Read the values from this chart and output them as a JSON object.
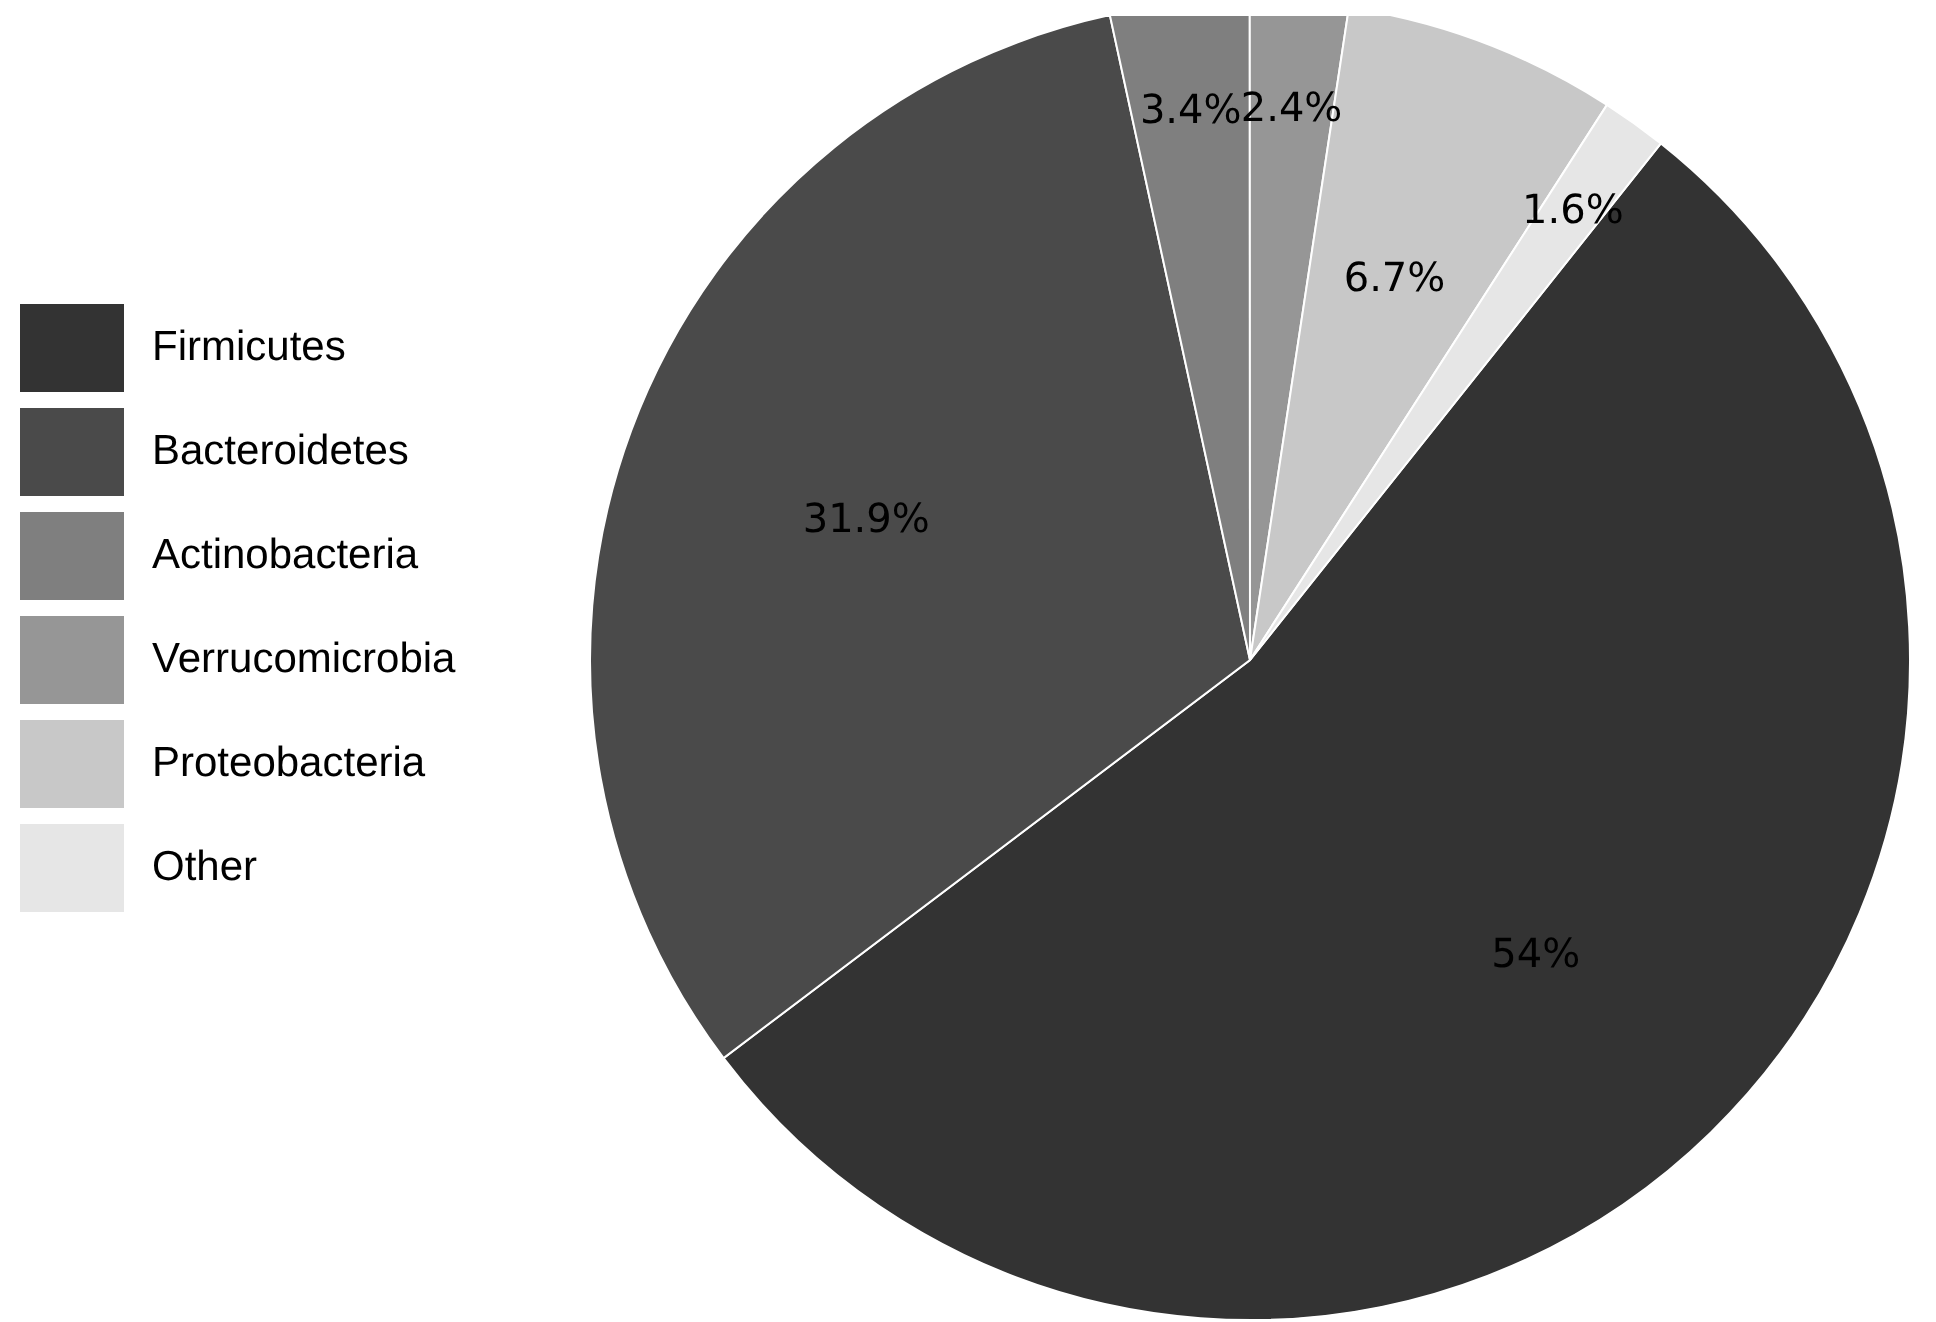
{
  "chart_data": {
    "type": "pie",
    "categories": [
      "Firmicutes",
      "Bacteroidetes",
      "Actinobacteria",
      "Verrucomicrobia",
      "Proteobacteria",
      "Other"
    ],
    "values": [
      54,
      31.9,
      3.4,
      2.4,
      6.7,
      1.6
    ],
    "colors": [
      "#333333",
      "#4a4a4a",
      "#7f7f7f",
      "#969696",
      "#c8c8c8",
      "#e6e6e6"
    ],
    "value_labels": [
      "54%",
      "31.9%",
      "3.4%",
      "2.4%",
      "6.7%",
      "1.6%"
    ],
    "legend": "left"
  }
}
